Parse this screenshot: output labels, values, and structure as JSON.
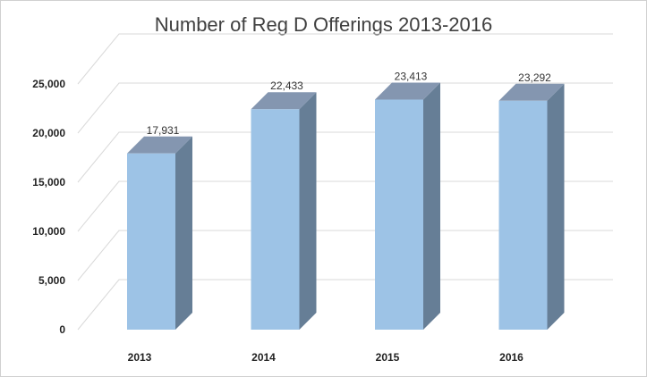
{
  "chart_data": {
    "type": "bar",
    "title": "Number of Reg D Offerings 2013-2016",
    "categories": [
      "2013",
      "2014",
      "2015",
      "2016"
    ],
    "values": [
      17931,
      22433,
      23413,
      23292
    ],
    "value_labels": [
      "17,931",
      "22,433",
      "23,413",
      "23,292"
    ],
    "y_ticks": [
      0,
      5000,
      10000,
      15000,
      20000,
      25000
    ],
    "y_tick_labels": [
      "0",
      "5,000",
      "10,000",
      "15,000",
      "20,000",
      "25,000"
    ],
    "ylim": [
      0,
      25000
    ],
    "grid": true,
    "legend": "none",
    "style": "3d-column",
    "colors": {
      "bar_front": "#9dc3e6",
      "bar_side": "#667e96",
      "bar_top": "#8496b0"
    }
  }
}
